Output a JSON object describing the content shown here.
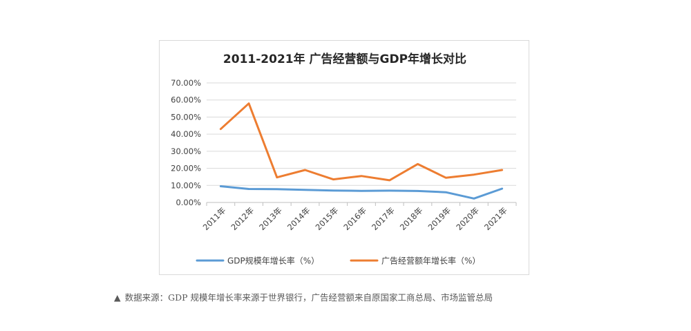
{
  "chart_data": {
    "type": "line",
    "title": "2011-2021年 广告经营额与GDP年增长对比",
    "categories": [
      "2011年",
      "2012年",
      "2013年",
      "2014年",
      "2015年",
      "2016年",
      "2017年",
      "2018年",
      "2019年",
      "2020年",
      "2021年"
    ],
    "y_ticks": [
      "0.00%",
      "10.00%",
      "20.00%",
      "30.00%",
      "40.00%",
      "50.00%",
      "60.00%",
      "70.00%"
    ],
    "ylim": [
      0,
      70
    ],
    "grid": true,
    "legend_position": "bottom",
    "series": [
      {
        "name": "GDP规模年增长率（%）",
        "color": "#5b9bd5",
        "values": [
          9.5,
          7.9,
          7.8,
          7.4,
          7.0,
          6.8,
          6.9,
          6.7,
          6.0,
          2.3,
          8.1
        ]
      },
      {
        "name": "广告经营额年增长率（%）",
        "color": "#ed7d31",
        "values": [
          43.0,
          58.0,
          14.7,
          19.0,
          13.5,
          15.5,
          13.0,
          22.5,
          14.5,
          16.3,
          19.0
        ]
      }
    ]
  },
  "caption": {
    "marker": "▲",
    "text": "数据来源：GDP 规模年增长率来源于世界银行，广告经营额来自原国家工商总局、市场监管总局"
  }
}
